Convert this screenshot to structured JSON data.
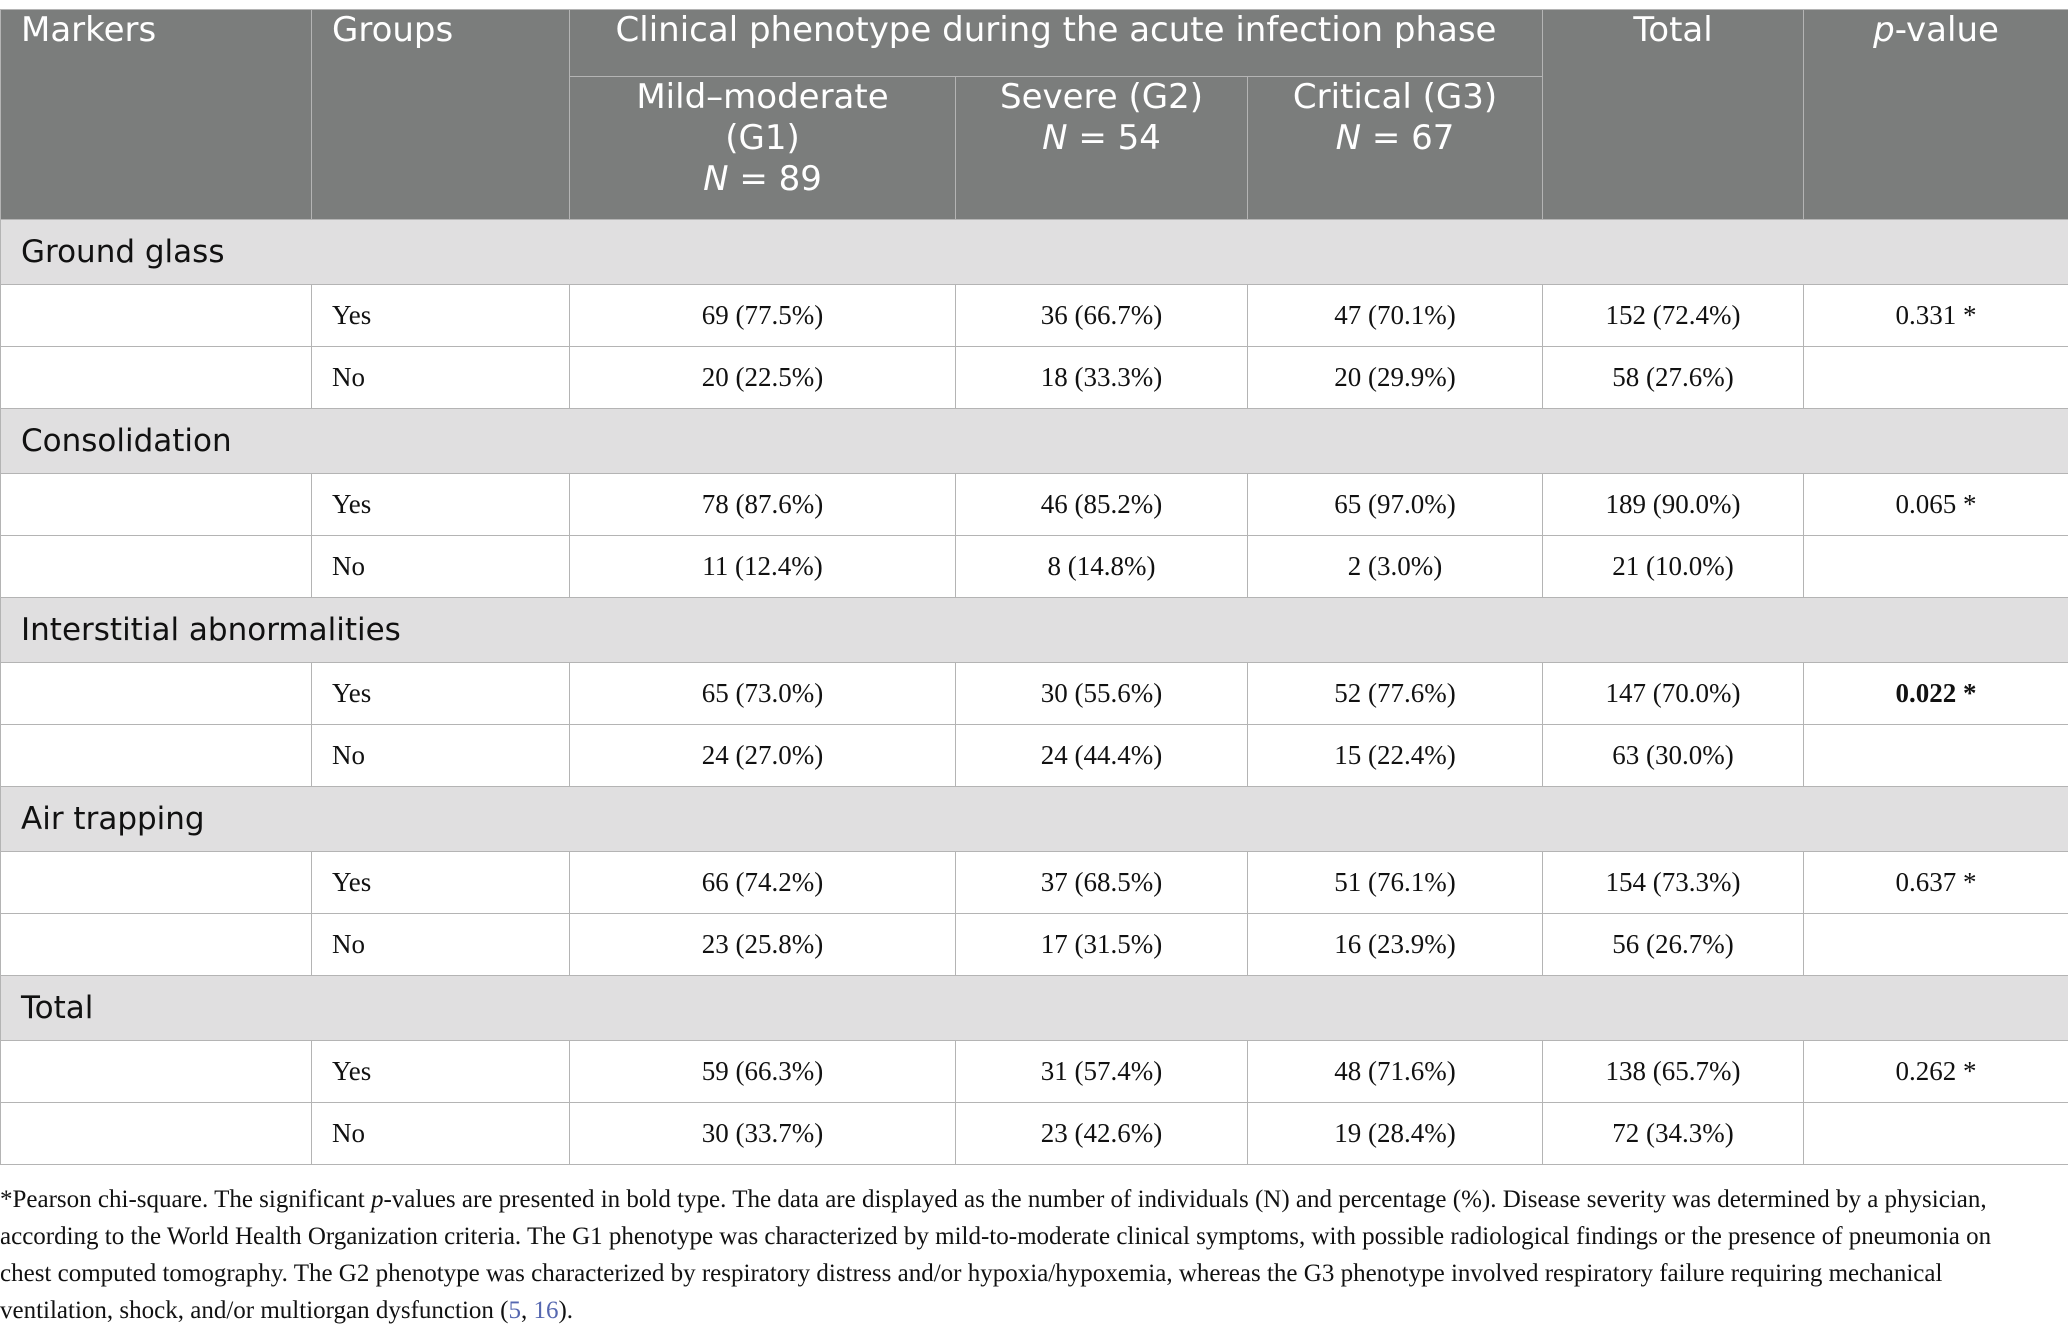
{
  "header": {
    "markers": "Markers",
    "groups": "Groups",
    "phenotype": "Clinical phenotype during the acute infection phase",
    "total": "Total",
    "pvalue_italic": "p",
    "pvalue_rest": "-value",
    "g1_l1": "Mild–moderate",
    "g1_l2": "(G1)",
    "g1_n": "N",
    "g1_eq": " = 89",
    "g2_l1": "Severe (G2)",
    "g2_n": "N",
    "g2_eq": " = 54",
    "g3_l1": "Critical (G3)",
    "g3_n": "N",
    "g3_eq": " = 67"
  },
  "sections": [
    {
      "name": "Ground glass",
      "rows": [
        {
          "group": "Yes",
          "g1": "69 (77.5%)",
          "g2": "36 (66.7%)",
          "g3": "47 (70.1%)",
          "total": "152 (72.4%)",
          "p": "0.331 *"
        },
        {
          "group": "No",
          "g1": "20 (22.5%)",
          "g2": "18 (33.3%)",
          "g3": "20 (29.9%)",
          "total": "58 (27.6%)",
          "p": ""
        }
      ]
    },
    {
      "name": "Consolidation",
      "rows": [
        {
          "group": "Yes",
          "g1": "78 (87.6%)",
          "g2": "46 (85.2%)",
          "g3": "65 (97.0%)",
          "total": "189 (90.0%)",
          "p": "0.065 *"
        },
        {
          "group": "No",
          "g1": "11 (12.4%)",
          "g2": "8 (14.8%)",
          "g3": "2 (3.0%)",
          "total": "21 (10.0%)",
          "p": ""
        }
      ]
    },
    {
      "name": "Interstitial abnormalities",
      "rows": [
        {
          "group": "Yes",
          "g1": "65 (73.0%)",
          "g2": "30 (55.6%)",
          "g3": "52 (77.6%)",
          "total": "147 (70.0%)",
          "p": "0.022 *"
        },
        {
          "group": "No",
          "g1": "24 (27.0%)",
          "g2": "24 (44.4%)",
          "g3": "15 (22.4%)",
          "total": "63 (30.0%)",
          "p": ""
        }
      ]
    },
    {
      "name": "Air trapping",
      "rows": [
        {
          "group": "Yes",
          "g1": "66 (74.2%)",
          "g2": "37 (68.5%)",
          "g3": "51 (76.1%)",
          "total": "154 (73.3%)",
          "p": "0.637 *"
        },
        {
          "group": "No",
          "g1": "23 (25.8%)",
          "g2": "17 (31.5%)",
          "g3": "16 (23.9%)",
          "total": "56 (26.7%)",
          "p": ""
        }
      ]
    },
    {
      "name": "Total",
      "rows": [
        {
          "group": "Yes",
          "g1": "59 (66.3%)",
          "g2": "31 (57.4%)",
          "g3": "48 (71.6%)",
          "total": "138 (65.7%)",
          "p": "0.262 *"
        },
        {
          "group": "No",
          "g1": "30 (33.7%)",
          "g2": "23 (42.6%)",
          "g3": "19 (28.4%)",
          "total": "72 (34.3%)",
          "p": ""
        }
      ]
    }
  ],
  "footnote": {
    "part1": "*Pearson chi-square. The significant ",
    "p_italic": "p",
    "part2": "-values are presented in bold type. The data are displayed as the number of individuals (N) and percentage (%). Disease severity was determined by a physician, according to the World Health Organization criteria. The G1 phenotype was characterized by mild-to-moderate clinical symptoms, with possible radiological findings or the presence of pneumonia on chest computed tomography. The G2 phenotype was characterized by respiratory distress and/or hypoxia/hypoxemia, whereas the G3 phenotype involved respiratory failure requiring mechanical ventilation, shock, and/or multiorgan dysfunction (",
    "ref1": "5",
    "sep": ", ",
    "ref2": "16",
    "end": ")."
  }
}
